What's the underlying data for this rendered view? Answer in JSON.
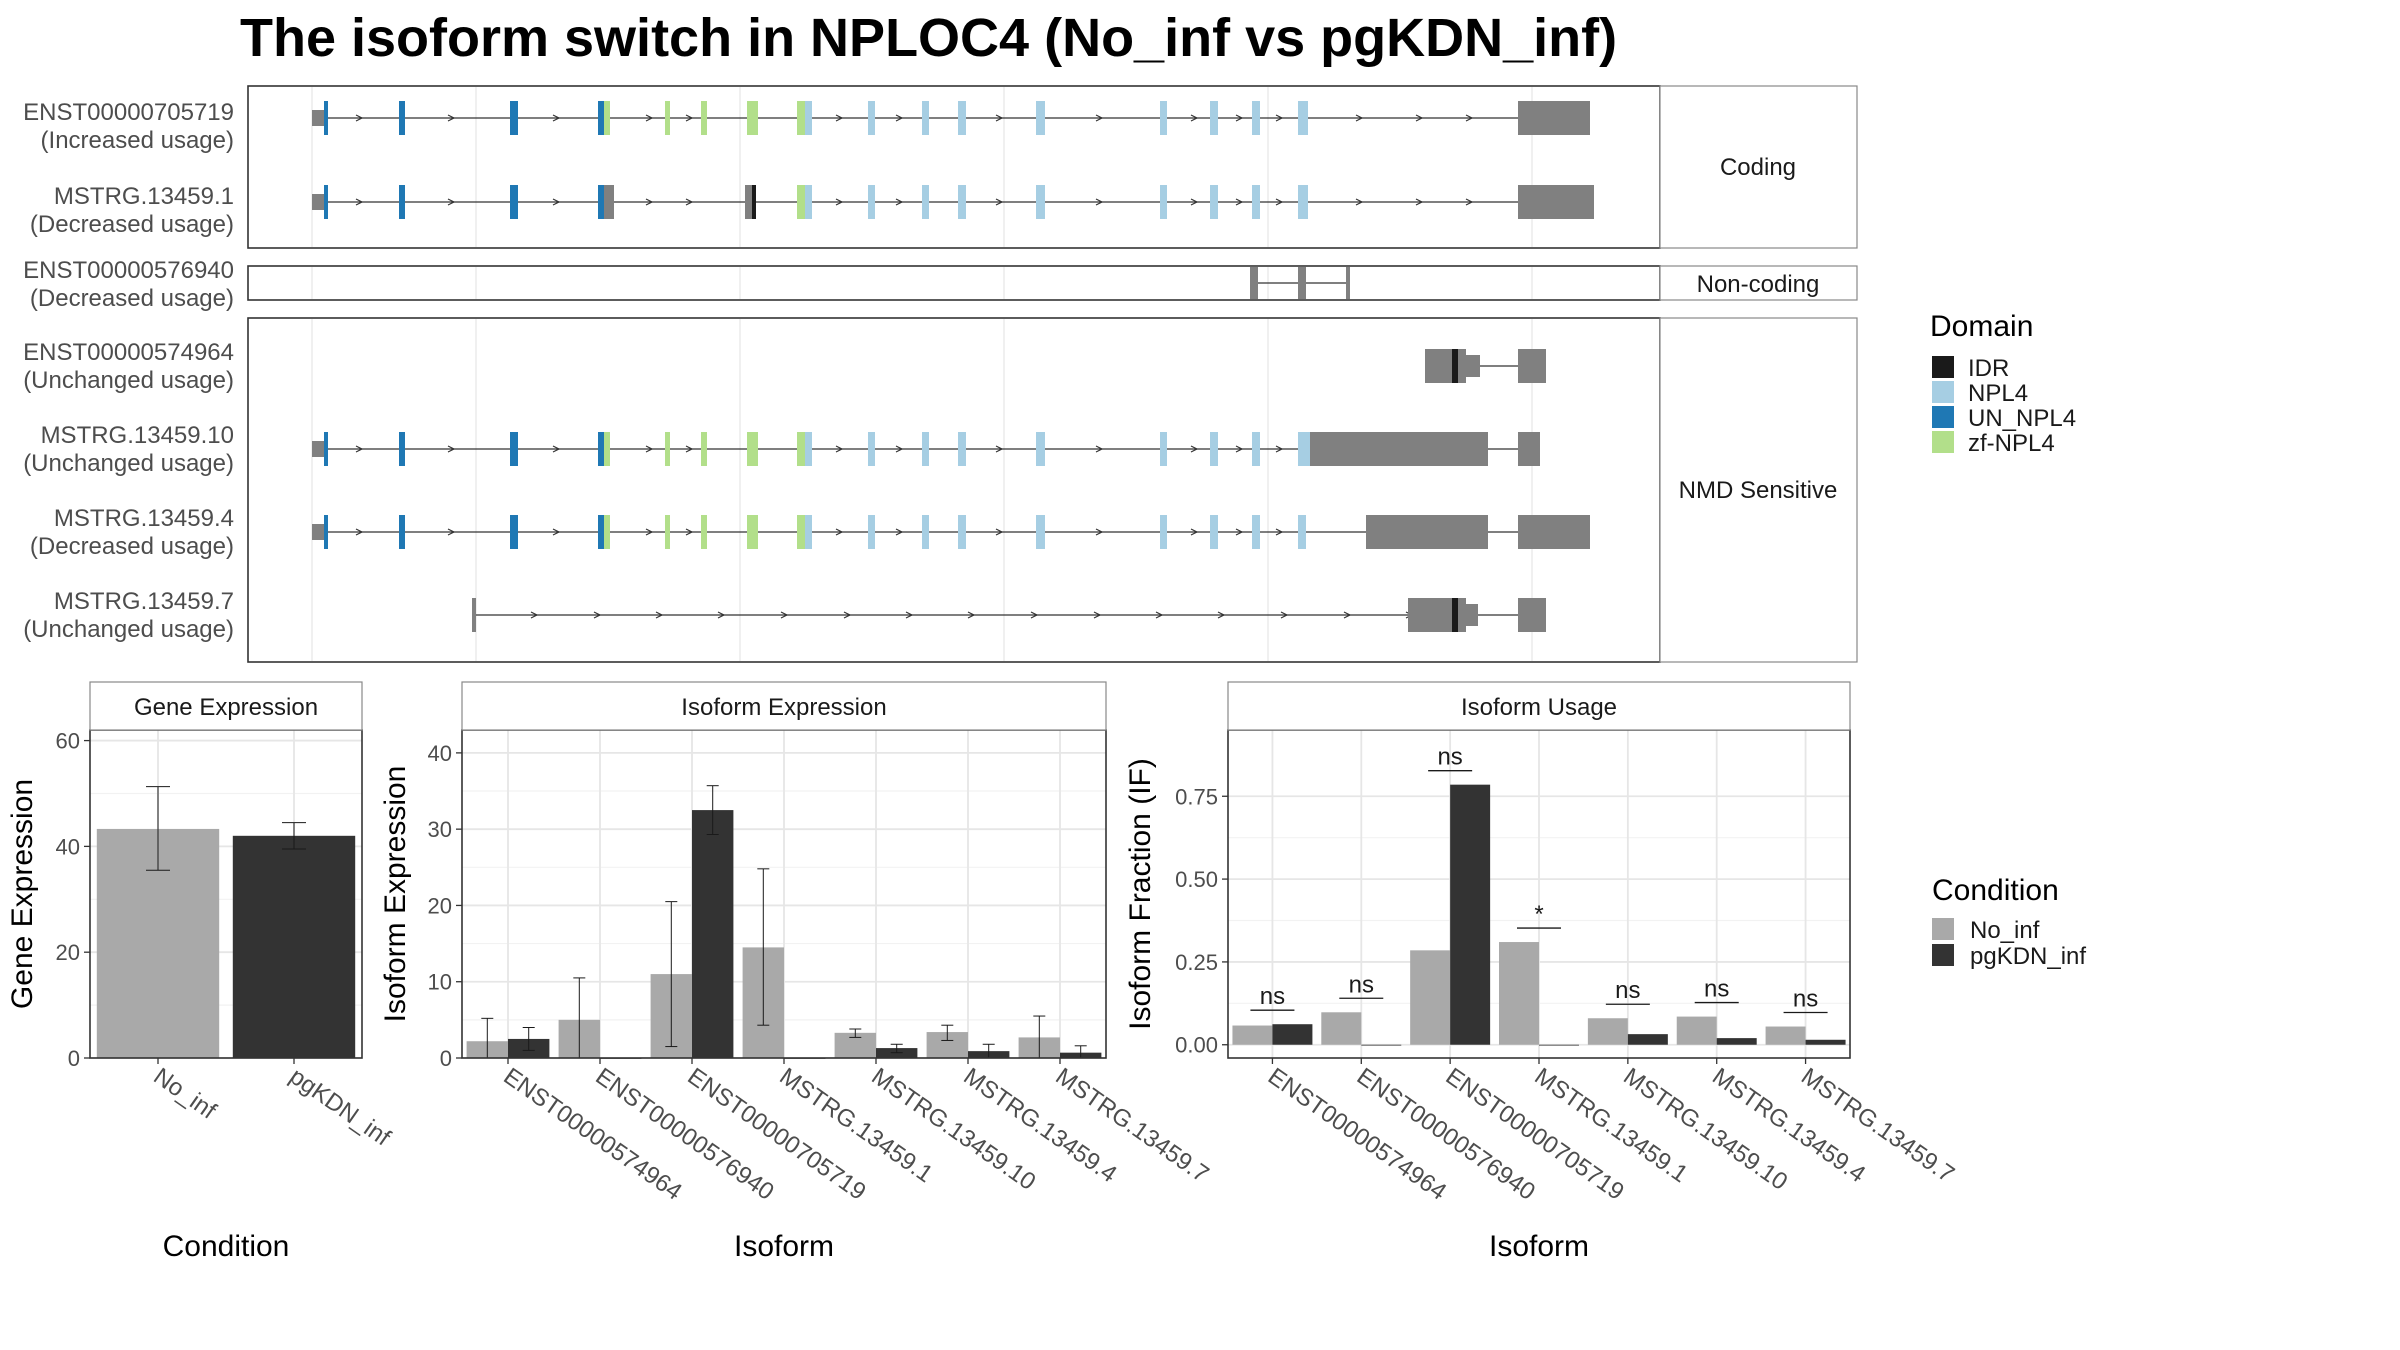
{
  "title": "The isoform switch in NPLOC4 (No_inf vs pgKDN_inf)",
  "colors": {
    "no_inf": "#a9a9a9",
    "pgkdn_inf": "#333333",
    "utr": "#808080",
    "IDR": "#1a1a1a",
    "NPL4": "#a6cee3",
    "UN_NPL4": "#1f78b4",
    "zf-NPL4": "#b2df8a"
  },
  "transcript_panel": {
    "groups": [
      {
        "label": "Coding",
        "transcripts": [
          {
            "id": "ENST00000705719",
            "status": "(Increased usage)"
          },
          {
            "id": "MSTRG.13459.1",
            "status": "(Decreased usage)"
          }
        ]
      },
      {
        "label": "Non-coding",
        "transcripts": [
          {
            "id": "ENST00000576940",
            "status": "(Decreased usage)"
          }
        ]
      },
      {
        "label": "NMD Sensitive",
        "transcripts": [
          {
            "id": "ENST00000574964",
            "status": "(Unchanged usage)"
          },
          {
            "id": "MSTRG.13459.10",
            "status": "(Unchanged usage)"
          },
          {
            "id": "MSTRG.13459.4",
            "status": "(Decreased usage)"
          },
          {
            "id": "MSTRG.13459.7",
            "status": "(Unchanged usage)"
          }
        ]
      }
    ]
  },
  "legends": {
    "domain": {
      "title": "Domain",
      "items": [
        "IDR",
        "NPL4",
        "UN_NPL4",
        "zf-NPL4"
      ]
    },
    "condition": {
      "title": "Condition",
      "items": [
        "No_inf",
        "pgKDN_inf"
      ]
    }
  },
  "chart_data": [
    {
      "type": "bar",
      "strip": "Gene Expression",
      "xlabel": "Condition",
      "ylabel": "Gene Expression",
      "ylim": [
        0,
        62
      ],
      "yticks": [
        0,
        20,
        40,
        60
      ],
      "categories": [
        "No_inf",
        "pgKDN_inf"
      ],
      "values": [
        43.3,
        42.0
      ],
      "errors": [
        [
          35.5,
          51.3
        ],
        [
          39.5,
          44.5
        ]
      ]
    },
    {
      "type": "bar",
      "strip": "Isoform Expression",
      "xlabel": "Isoform",
      "ylabel": "Isoform Expression",
      "ylim": [
        0,
        43
      ],
      "yticks": [
        0,
        10,
        20,
        30,
        40
      ],
      "categories": [
        "ENST00000574964",
        "ENST00000576940",
        "ENST00000705719",
        "MSTRG.13459.1",
        "MSTRG.13459.10",
        "MSTRG.13459.4",
        "MSTRG.13459.7"
      ],
      "series": [
        {
          "name": "No_inf",
          "values": [
            2.2,
            5.0,
            11.0,
            14.5,
            3.3,
            3.4,
            2.7
          ],
          "errors": [
            [
              0,
              5.2
            ],
            [
              0,
              10.5
            ],
            [
              1.5,
              20.5
            ],
            [
              4.3,
              24.8
            ],
            [
              2.7,
              3.8
            ],
            [
              2.3,
              4.3
            ],
            [
              0,
              5.5
            ]
          ]
        },
        {
          "name": "pgKDN_inf",
          "values": [
            2.5,
            0,
            32.5,
            0,
            1.3,
            0.9,
            0.7
          ],
          "errors": [
            [
              1.0,
              4.0
            ],
            [
              0,
              0
            ],
            [
              29.3,
              35.7
            ],
            [
              0,
              0
            ],
            [
              0.7,
              1.8
            ],
            [
              0,
              1.8
            ],
            [
              0,
              1.6
            ]
          ]
        }
      ]
    },
    {
      "type": "bar",
      "strip": "Isoform Usage",
      "xlabel": "Isoform",
      "ylabel": "Isoform Fraction (IF)",
      "ylim": [
        -0.04,
        0.95
      ],
      "yticks": [
        0.0,
        0.25,
        0.5,
        0.75
      ],
      "yticklabels": [
        "0.00",
        "0.25",
        "0.50",
        "0.75"
      ],
      "categories": [
        "ENST00000574964",
        "ENST00000576940",
        "ENST00000705719",
        "MSTRG.13459.1",
        "MSTRG.13459.10",
        "MSTRG.13459.4",
        "MSTRG.13459.7"
      ],
      "series": [
        {
          "name": "No_inf",
          "values": [
            0.058,
            0.098,
            0.285,
            0.31,
            0.08,
            0.085,
            0.055
          ]
        },
        {
          "name": "pgKDN_inf",
          "values": [
            0.062,
            0.0,
            0.785,
            0.0,
            0.032,
            0.02,
            0.015
          ]
        }
      ],
      "significance": [
        "ns",
        "ns",
        "ns",
        "*",
        "ns",
        "ns",
        "ns"
      ]
    }
  ]
}
